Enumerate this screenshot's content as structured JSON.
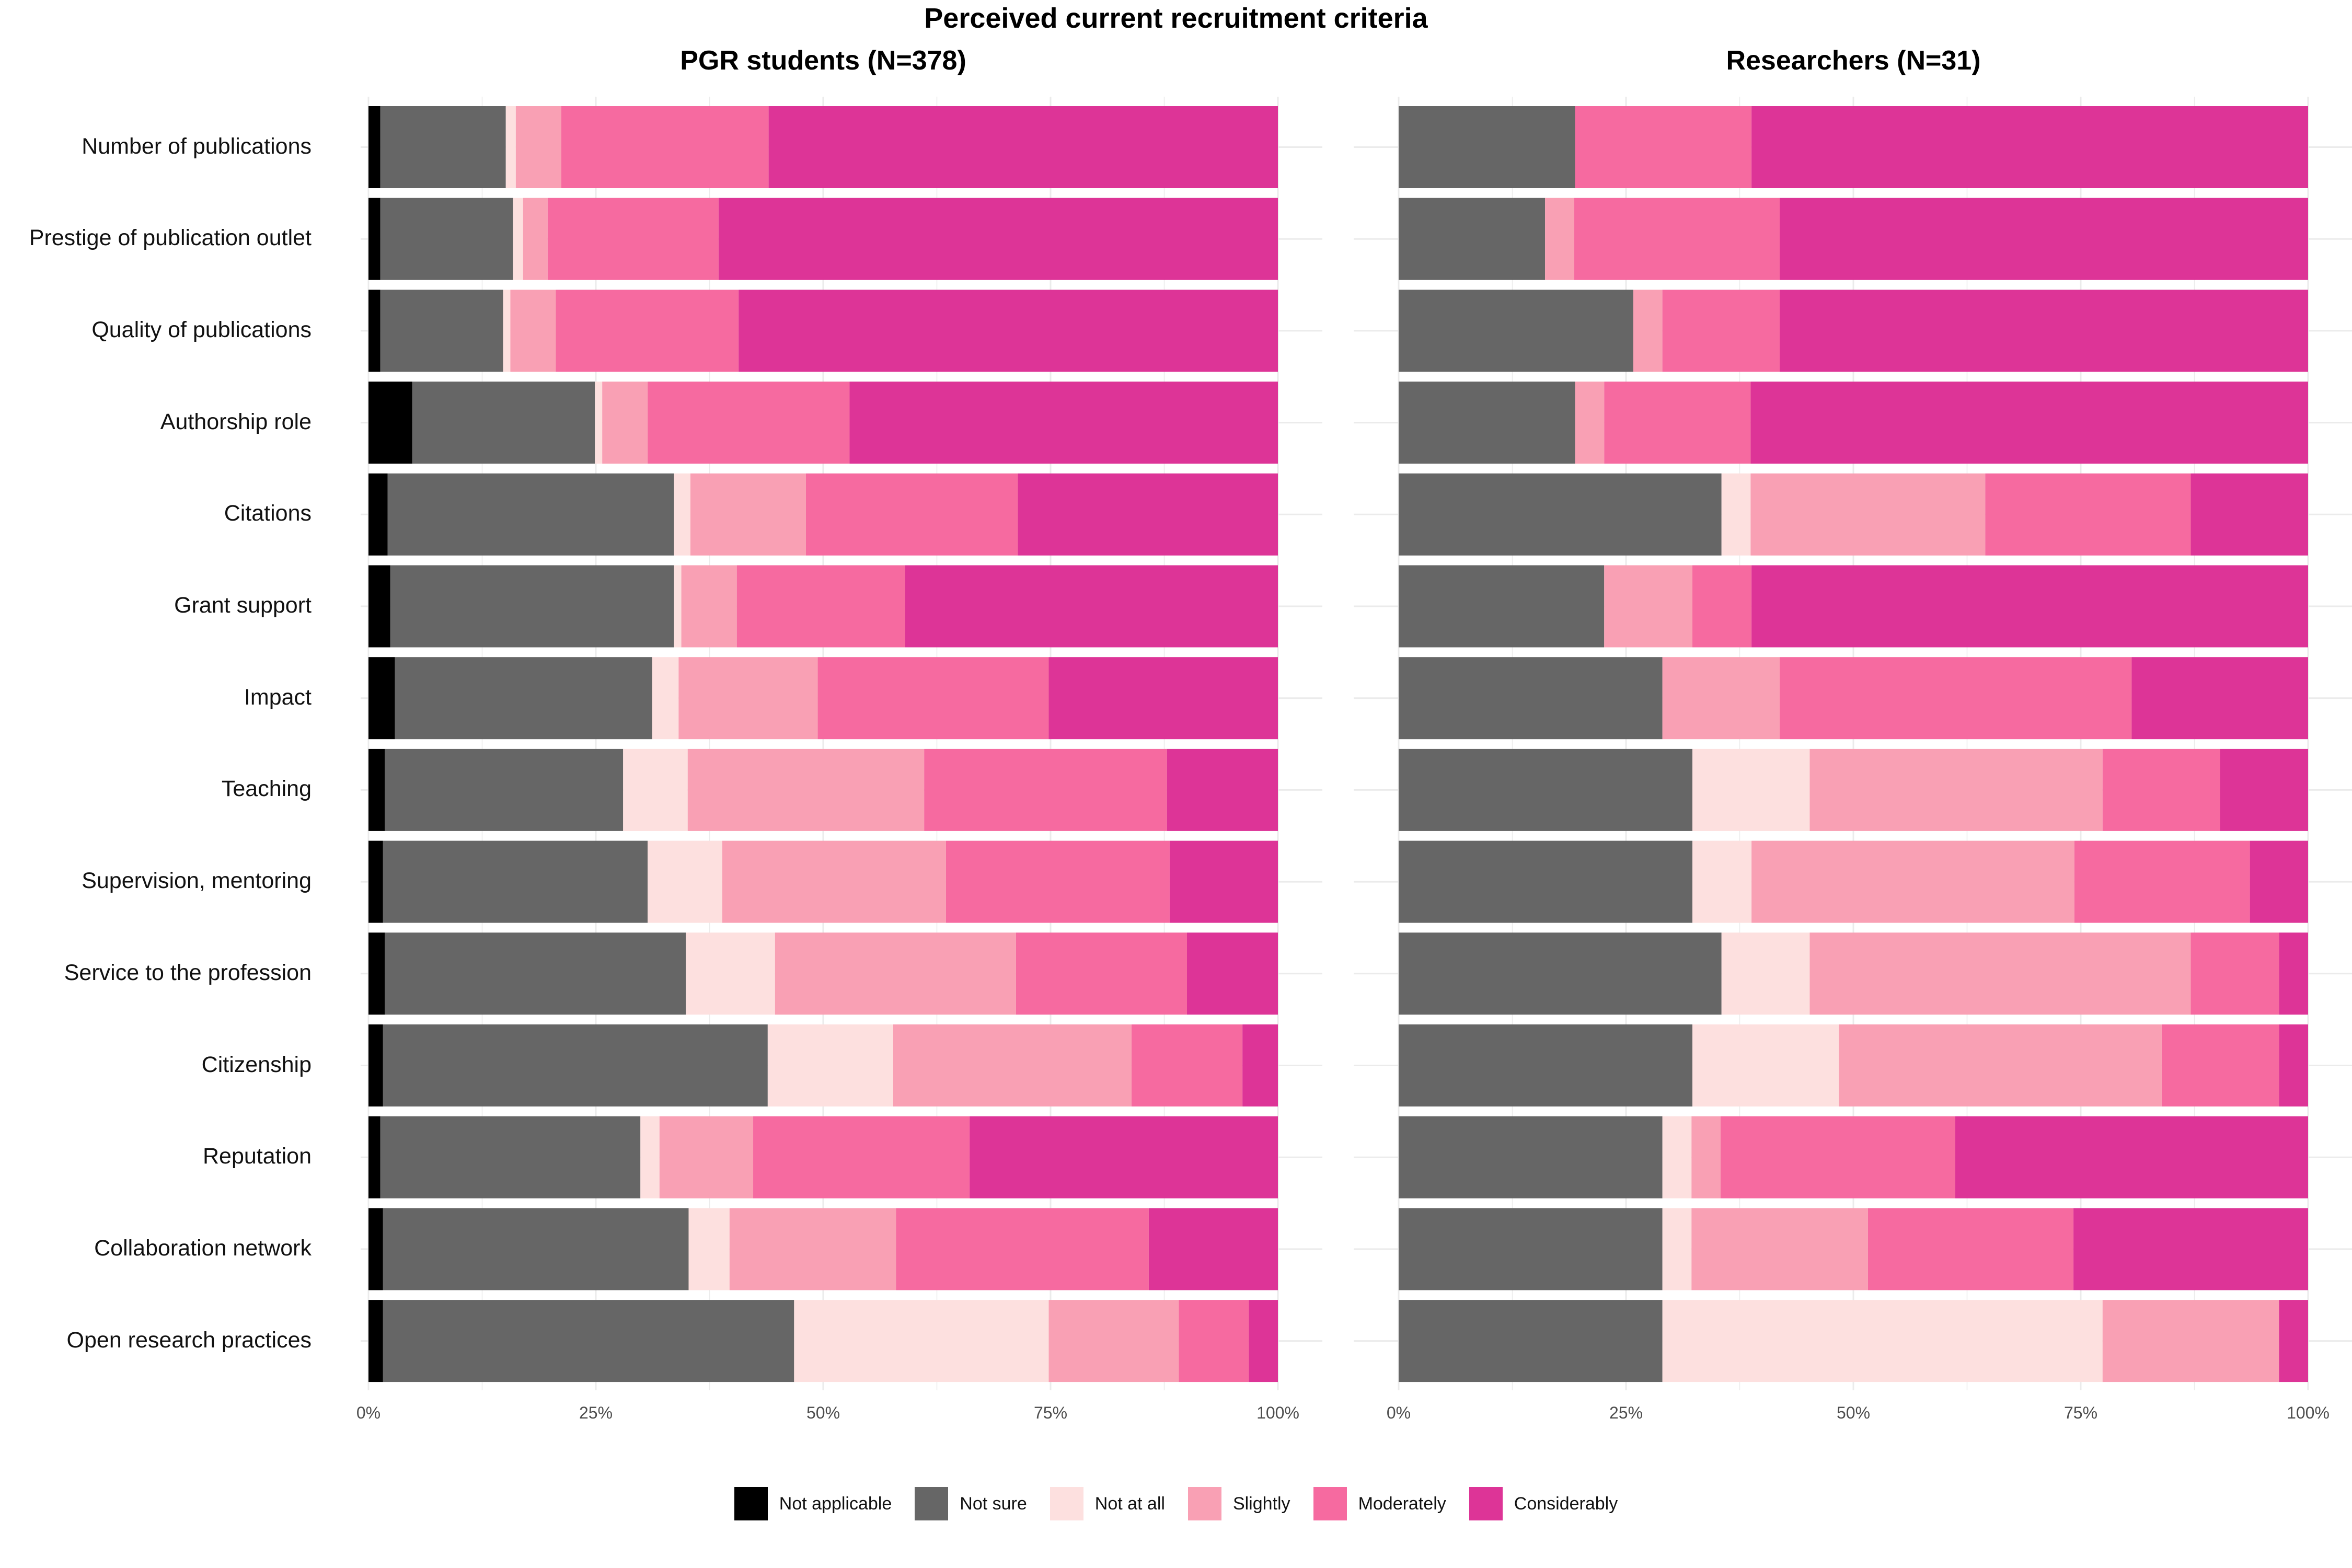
{
  "chart_data": {
    "type": "bar",
    "orientation": "horizontal-stacked-percent",
    "title": "Perceived current recruitment criteria",
    "categories": [
      "Number of publications",
      "Prestige of publication outlet",
      "Quality of publications",
      "Authorship role",
      "Citations",
      "Grant support",
      "Impact",
      "Teaching",
      "Supervision, mentoring",
      "Service to the profession",
      "Citizenship",
      "Reputation",
      "Collaboration network",
      "Open research practices"
    ],
    "legend": [
      {
        "name": "Not applicable",
        "color": "#000000"
      },
      {
        "name": "Not sure",
        "color": "#666666"
      },
      {
        "name": "Not at all",
        "color": "#fde0df"
      },
      {
        "name": "Slightly",
        "color": "#f9a0b4"
      },
      {
        "name": "Moderately",
        "color": "#f66aa0"
      },
      {
        "name": "Considerably",
        "color": "#dd3497"
      }
    ],
    "x_ticks": [
      "0%",
      "25%",
      "50%",
      "75%",
      "100%"
    ],
    "xlim": [
      0,
      100
    ],
    "legend_position": "bottom",
    "panels": [
      {
        "title": "PGR students (N=378)",
        "rows": [
          [
            1.3,
            13.8,
            1.1,
            5.0,
            22.8,
            56.0
          ],
          [
            1.3,
            14.6,
            1.1,
            2.7,
            18.8,
            61.5
          ],
          [
            1.3,
            13.5,
            0.8,
            5.0,
            20.1,
            59.3
          ],
          [
            4.8,
            20.1,
            0.8,
            5.0,
            22.2,
            47.1
          ],
          [
            2.1,
            31.5,
            1.8,
            12.7,
            23.3,
            28.6
          ],
          [
            2.4,
            31.2,
            0.8,
            6.1,
            18.5,
            41.0
          ],
          [
            2.9,
            28.3,
            2.9,
            15.3,
            25.4,
            25.2
          ],
          [
            1.8,
            26.2,
            7.1,
            26.0,
            26.7,
            12.2
          ],
          [
            1.6,
            29.1,
            8.2,
            24.6,
            24.6,
            11.9
          ],
          [
            1.8,
            33.1,
            9.8,
            26.5,
            18.8,
            10.0
          ],
          [
            1.6,
            42.3,
            13.8,
            26.2,
            12.2,
            3.9
          ],
          [
            1.3,
            28.6,
            2.1,
            10.3,
            23.8,
            33.9
          ],
          [
            1.6,
            33.6,
            4.5,
            18.3,
            27.8,
            14.2
          ],
          [
            1.6,
            45.2,
            28.0,
            14.3,
            7.7,
            3.2
          ]
        ]
      },
      {
        "title": "Researchers (N=31)",
        "rows": [
          [
            0,
            19.4,
            0,
            0,
            19.4,
            61.2
          ],
          [
            0,
            16.1,
            0,
            3.2,
            22.6,
            58.1
          ],
          [
            0,
            25.8,
            0,
            3.2,
            12.9,
            58.1
          ],
          [
            0,
            19.4,
            0,
            3.2,
            16.1,
            61.3
          ],
          [
            0,
            35.5,
            3.2,
            25.8,
            22.6,
            12.9
          ],
          [
            0,
            22.6,
            0,
            9.7,
            6.5,
            61.2
          ],
          [
            0,
            29.0,
            0,
            12.9,
            38.7,
            19.4
          ],
          [
            0,
            32.3,
            12.9,
            32.2,
            12.9,
            9.7
          ],
          [
            0,
            32.3,
            6.5,
            35.5,
            19.3,
            6.4
          ],
          [
            0,
            35.5,
            9.7,
            41.9,
            9.7,
            3.2
          ],
          [
            0,
            32.3,
            16.1,
            35.5,
            12.9,
            3.2
          ],
          [
            0,
            29.0,
            3.2,
            3.2,
            25.8,
            38.8
          ],
          [
            0,
            29.0,
            3.2,
            19.4,
            22.6,
            25.8
          ],
          [
            0,
            29.0,
            48.4,
            19.4,
            0,
            3.2
          ]
        ]
      }
    ]
  }
}
